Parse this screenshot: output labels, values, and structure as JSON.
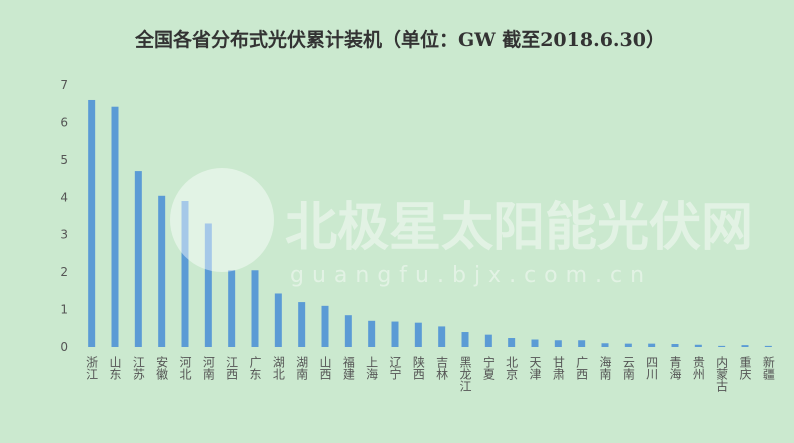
{
  "chart_data": {
    "type": "bar",
    "title": "全国各省分布式光伏累计装机（单位：GW 截至2018.6.30）",
    "xlabel": "",
    "ylabel": "",
    "ylim": [
      0,
      7
    ],
    "yticks": [
      0,
      1,
      2,
      3,
      4,
      5,
      6,
      7
    ],
    "grid": false,
    "bar_color": "#5b9bd5",
    "background_color": "#cbe9cf",
    "categories": [
      "浙江",
      "山东",
      "江苏",
      "安徽",
      "河北",
      "河南",
      "江西",
      "广东",
      "湖北",
      "湖南",
      "山西",
      "福建",
      "上海",
      "辽宁",
      "陕西",
      "吉林",
      "黑龙江",
      "宁夏",
      "北京",
      "天津",
      "甘肃",
      "广西",
      "海南",
      "云南",
      "四川",
      "青海",
      "贵州",
      "内蒙古",
      "重庆",
      "新疆"
    ],
    "values": [
      6.6,
      6.42,
      4.7,
      4.04,
      3.9,
      3.3,
      2.05,
      2.05,
      1.43,
      1.2,
      1.1,
      0.85,
      0.7,
      0.68,
      0.65,
      0.55,
      0.4,
      0.33,
      0.24,
      0.2,
      0.18,
      0.18,
      0.1,
      0.09,
      0.09,
      0.08,
      0.06,
      0.03,
      0.05,
      0.03
    ]
  },
  "watermark": {
    "name": "北极星太阳能光伏网",
    "url": "guangfu.bjx.com.cn"
  }
}
